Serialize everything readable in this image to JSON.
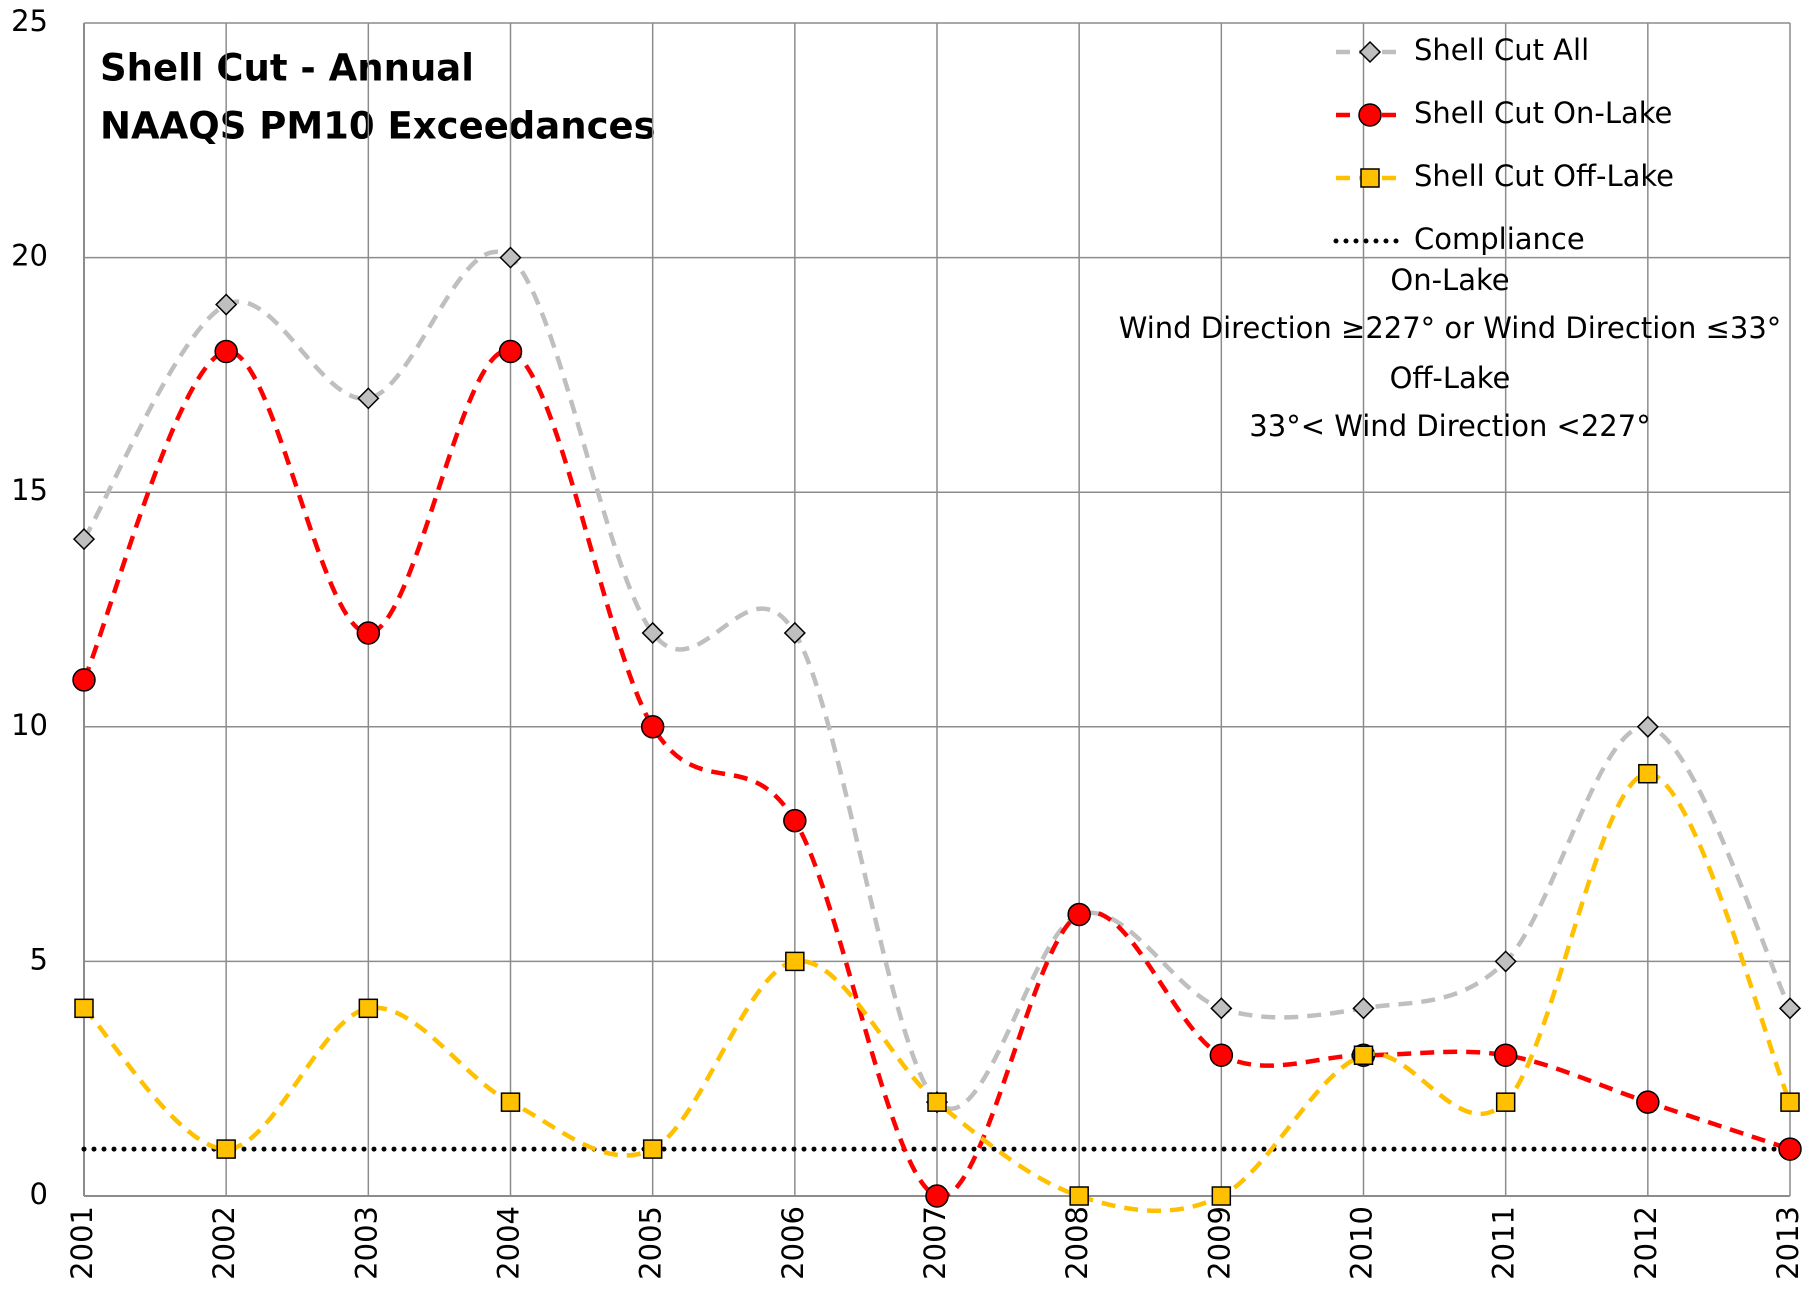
{
  "chart_data": {
    "type": "line",
    "title": [
      "Shell Cut - Annual",
      "NAAQS PM10 Exceedances"
    ],
    "categories": [
      "2001",
      "2002",
      "2003",
      "2004",
      "2005",
      "2006",
      "2007",
      "2008",
      "2009",
      "2010",
      "2011",
      "2012",
      "2013"
    ],
    "series": [
      {
        "name": "Shell Cut  All",
        "color": "#bfbfbf",
        "marker": "diamond",
        "smooth": true,
        "values": [
          14,
          19,
          17,
          20,
          12,
          12,
          2,
          6,
          4,
          4,
          5,
          10,
          4
        ]
      },
      {
        "name": "Shell Cut On-Lake",
        "color": "#ff0000",
        "marker": "circle",
        "smooth": true,
        "values": [
          11,
          18,
          12,
          18,
          10,
          8,
          0,
          6,
          3,
          3,
          3,
          2,
          1
        ]
      },
      {
        "name": "Shell Cut Off-Lake",
        "color": "#ffc000",
        "marker": "square",
        "smooth": true,
        "values": [
          4,
          1,
          4,
          2,
          1,
          5,
          2,
          0,
          0,
          3,
          2,
          9,
          2
        ]
      },
      {
        "name": "Compliance",
        "color": "#000000",
        "marker": "none",
        "smooth": false,
        "values": [
          1,
          1,
          1,
          1,
          1,
          1,
          1,
          1,
          1,
          1,
          1,
          1,
          1
        ]
      }
    ],
    "annotations": [
      "On-Lake",
      "Wind Direction ≥227° or Wind Direction ≤33°",
      "Off-Lake",
      "33°< Wind Direction <227°"
    ],
    "ylim": [
      0,
      25
    ],
    "yticks": [
      0,
      5,
      10,
      15,
      20,
      25
    ],
    "grid": true,
    "legend": "upper right"
  }
}
